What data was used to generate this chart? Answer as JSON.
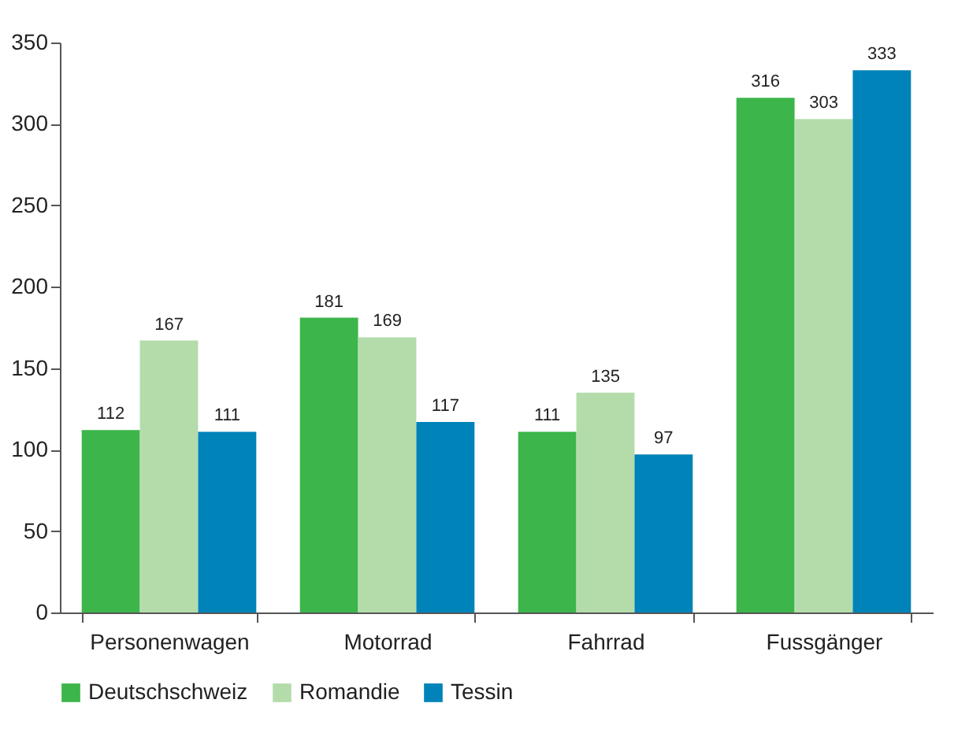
{
  "chart_data": {
    "type": "bar",
    "categories": [
      "Personenwagen",
      "Motorrad",
      "Fahrrad",
      "Fussgänger"
    ],
    "series": [
      {
        "name": "Deutschschweiz",
        "color": "#3cb54a",
        "values": [
          112,
          181,
          111,
          316
        ]
      },
      {
        "name": "Romandie",
        "color": "#b4dcab",
        "values": [
          167,
          169,
          135,
          303
        ]
      },
      {
        "name": "Tessin",
        "color": "#0083b8",
        "values": [
          111,
          117,
          97,
          333
        ]
      }
    ],
    "ylim": [
      0,
      350
    ],
    "yticks": [
      0,
      50,
      100,
      150,
      200,
      250,
      300,
      350
    ],
    "grid": false,
    "legend": "bottom",
    "data_labels": true
  }
}
